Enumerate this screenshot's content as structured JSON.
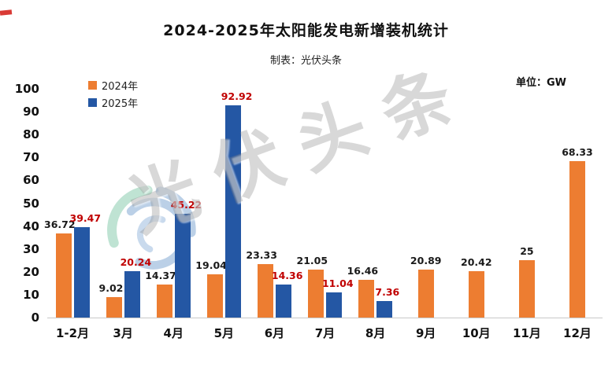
{
  "header": {
    "title": "2024-2025年太阳能发电新增装机统计",
    "subtitle": "制表：光伏头条",
    "unit_label": "单位：GW"
  },
  "watermark": {
    "text": "光伏头条"
  },
  "colors": {
    "bar_2024": "#ED7D31",
    "bar_2025": "#2457A4",
    "label_2024": "#1a1a1a",
    "label_2025": "#C00000",
    "axis_line": "#c9c9c9"
  },
  "legend": [
    {
      "label": "2024年",
      "color": "#ED7D31"
    },
    {
      "label": "2025年",
      "color": "#2457A4"
    }
  ],
  "chart_data": {
    "type": "bar",
    "title": "2024-2025年太阳能发电新增装机统计",
    "subtitle": "制表：光伏头条",
    "unit": "GW",
    "legend_position": "top-left",
    "grid": false,
    "ylim": [
      0,
      100
    ],
    "yticks": [
      0,
      10,
      20,
      30,
      40,
      50,
      60,
      70,
      80,
      90,
      100
    ],
    "categories": [
      "1-2月",
      "3月",
      "4月",
      "5月",
      "6月",
      "7月",
      "8月",
      "9月",
      "10月",
      "11月",
      "12月"
    ],
    "series": [
      {
        "name": "2024年",
        "color": "#ED7D31",
        "label_color": "#1a1a1a",
        "values": [
          36.72,
          9.02,
          14.37,
          19.04,
          23.33,
          21.05,
          16.46,
          20.89,
          20.42,
          25,
          68.33
        ],
        "labels": [
          "36.72",
          "9.02",
          "14.37",
          "19.04",
          "23.33",
          "21.05",
          "16.46",
          "20.89",
          "20.42",
          "25",
          "68.33"
        ]
      },
      {
        "name": "2025年",
        "color": "#2457A4",
        "label_color": "#C00000",
        "values": [
          39.47,
          20.24,
          45.22,
          92.92,
          14.36,
          11.04,
          7.36,
          null,
          null,
          null,
          null
        ],
        "labels": [
          "39.47",
          "20.24",
          "45.22",
          "92.92",
          "14.36",
          "11.04",
          "7.36",
          null,
          null,
          null,
          null
        ]
      }
    ]
  }
}
